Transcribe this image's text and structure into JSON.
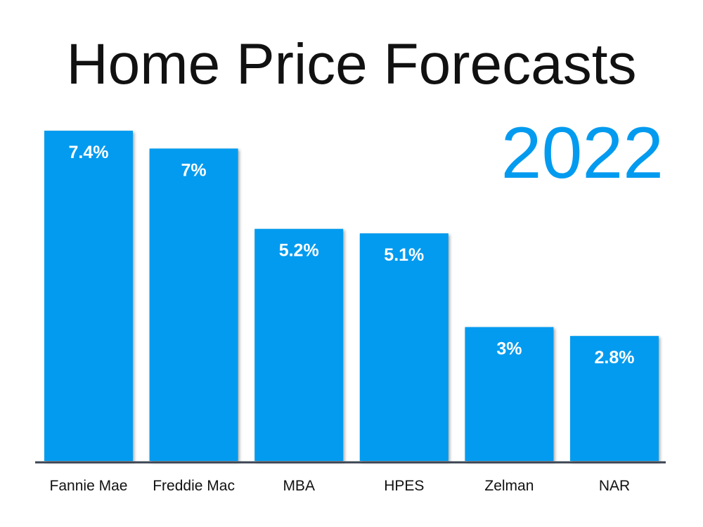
{
  "chart_data": {
    "type": "bar",
    "title": "Home Price Forecasts",
    "subtitle": "2022",
    "categories": [
      "Fannie Mae",
      "Freddie Mac",
      "MBA",
      "HPES",
      "Zelman",
      "NAR"
    ],
    "values": [
      7.4,
      7,
      5.2,
      5.1,
      3,
      2.8
    ],
    "value_labels": [
      "7.4%",
      "7%",
      "5.2%",
      "5.1%",
      "3%",
      "2.8%"
    ],
    "xlabel": "",
    "ylabel": "",
    "ylim": [
      0,
      7.4
    ],
    "grid": false,
    "legend": "none"
  },
  "colors": {
    "bar": "#039BEF",
    "subtitle": "#039BEF",
    "axis": "#3a4452",
    "title": "#111111"
  }
}
